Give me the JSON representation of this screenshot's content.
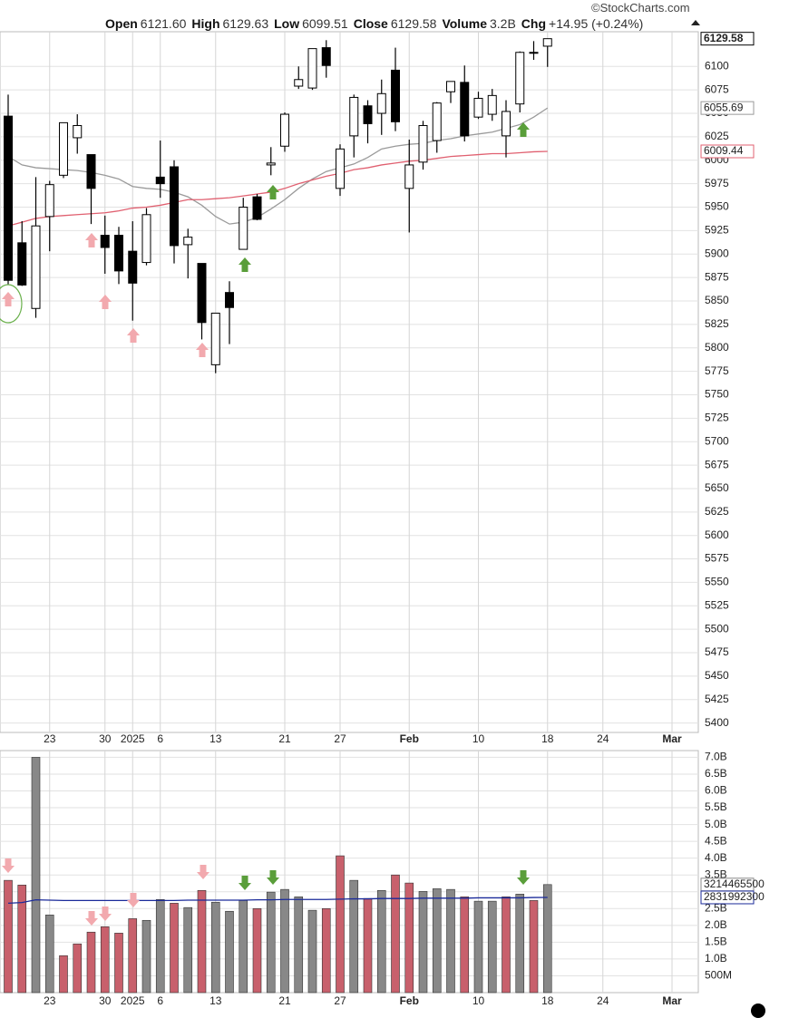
{
  "header": {
    "source": "©StockCharts.com",
    "items": [
      [
        "Open",
        "6121.60"
      ],
      [
        "High",
        "6129.63"
      ],
      [
        "Low",
        "6099.51"
      ],
      [
        "Close",
        "6129.58"
      ],
      [
        "Volume",
        "3.2B"
      ],
      [
        "Chg",
        "+14.95 (+0.24%)"
      ]
    ]
  },
  "chart_data": [
    {
      "type": "candlestick",
      "categories": [
        null,
        null,
        null,
        "23",
        null,
        null,
        null,
        "30",
        null,
        "2025",
        null,
        "6",
        null,
        null,
        null,
        "13",
        null,
        null,
        null,
        null,
        "21",
        null,
        null,
        null,
        "27",
        null,
        null,
        null,
        null,
        "Feb",
        null,
        null,
        null,
        null,
        "10",
        null,
        null,
        null,
        null,
        "18",
        null,
        null,
        null,
        "24",
        null,
        null,
        null,
        null,
        "Mar"
      ],
      "open": [
        6047,
        5912,
        5842,
        5940,
        5984,
        6024,
        6006,
        5920,
        5920,
        5903,
        5891,
        5982,
        5993,
        5910,
        5890,
        5782,
        5859,
        5905,
        5961,
        5995,
        6015,
        6079,
        6077,
        6120,
        5970,
        6026,
        6058,
        6050,
        6096,
        5970,
        5998,
        6021,
        6073,
        6083,
        6046,
        6049,
        6026,
        6060,
        6115,
        6121.6,
        null,
        null,
        null,
        null,
        null,
        null,
        null,
        null,
        null
      ],
      "high": [
        6070,
        5935,
        5982,
        5978,
        6040,
        6049,
        6006,
        5941,
        5929,
        5935,
        5949,
        6021,
        6000,
        5927,
        5890,
        5837,
        5871,
        5960,
        5964,
        6014,
        6051,
        6100,
        6119,
        6128,
        6017,
        6070,
        6064,
        6086,
        6120,
        6022,
        6042,
        6062,
        6084,
        6101,
        6073,
        6076,
        6064,
        6116,
        6127,
        6129.63,
        null,
        null,
        null,
        null,
        null,
        null,
        null,
        null,
        null
      ],
      "low": [
        5867,
        5866,
        5832,
        5903,
        5981,
        6007,
        5932,
        5879,
        5868,
        5829,
        5888,
        5960,
        5890,
        5874,
        5809,
        5773,
        5804,
        5905,
        5936,
        5984,
        6009,
        6076,
        6075,
        6088,
        5962,
        6003,
        6018,
        6027,
        6031,
        5923,
        5990,
        6008,
        6061,
        6020,
        6044,
        6042,
        6003,
        6051,
        6107,
        6099.51,
        null,
        null,
        null,
        null,
        null,
        null,
        null,
        null,
        null
      ],
      "close": [
        5872,
        5867,
        5930,
        5974,
        6040,
        6037,
        5970,
        5907,
        5882,
        5869,
        5942,
        5975,
        5909,
        5918,
        5827,
        5837,
        5843,
        5950,
        5937,
        5997,
        6049,
        6086,
        6119,
        6101,
        6012,
        6067,
        6039,
        6071,
        6041,
        5995,
        6037,
        6061,
        6084,
        6026,
        6066,
        6069,
        6052,
        6115,
        6115,
        6129.58,
        null,
        null,
        null,
        null,
        null,
        null,
        null,
        null,
        null
      ],
      "series": [
        {
          "color": "#9a9a9a",
          "values": [
            6004,
            5995,
            5992,
            5991,
            5990,
            5989,
            5987,
            5984,
            5980,
            5972,
            5970,
            5969,
            5966,
            5961,
            5952,
            5940,
            5932,
            5934,
            5939,
            5948,
            5958,
            5970,
            5980,
            5988,
            5992,
            5996,
            6003,
            6012,
            6015,
            6017,
            6018,
            6021,
            6023,
            6026,
            6028,
            6030,
            6034,
            6038,
            6046,
            6055.69,
            null,
            null,
            null,
            null,
            null,
            null,
            null,
            null,
            null
          ]
        },
        {
          "color": "#e06070",
          "values": [
            5930,
            5934,
            5938,
            5940,
            5941,
            5942,
            5943,
            5944,
            5946,
            5949,
            5950,
            5952,
            5955,
            5958,
            5958,
            5959,
            5960,
            5962,
            5964,
            5966,
            5970,
            5975,
            5979,
            5983,
            5986,
            5990,
            5992,
            5995,
            5997,
            5999,
            6000,
            6002,
            6004,
            6005,
            6006,
            6007,
            6007,
            6008,
            6009,
            6009.44,
            null,
            null,
            null,
            null,
            null,
            null,
            null,
            null,
            null
          ]
        }
      ],
      "ylim": [
        5390,
        6137
      ],
      "yticks": [
        5400,
        5425,
        5450,
        5475,
        5500,
        5525,
        5550,
        5575,
        5600,
        5625,
        5650,
        5675,
        5700,
        5725,
        5750,
        5775,
        5800,
        5825,
        5850,
        5875,
        5900,
        5925,
        5950,
        5975,
        6000,
        6025,
        6050,
        6075,
        6100
      ],
      "grid": true
    },
    {
      "type": "bar",
      "categories": [
        null,
        null,
        null,
        "23",
        null,
        null,
        null,
        "30",
        null,
        "2025",
        null,
        "6",
        null,
        null,
        null,
        "13",
        null,
        null,
        null,
        null,
        "21",
        null,
        null,
        null,
        "27",
        null,
        null,
        null,
        null,
        "Feb",
        null,
        null,
        null,
        null,
        "10",
        null,
        null,
        null,
        null,
        "18",
        null,
        null,
        null,
        "24",
        null,
        null,
        null,
        null,
        "Mar"
      ],
      "values": [
        3340000000,
        3200000000,
        7000000000,
        2310000000,
        1100000000,
        1450000000,
        1800000000,
        1960000000,
        1770000000,
        2200000000,
        2150000000,
        2770000000,
        2660000000,
        2530000000,
        3040000000,
        2690000000,
        2420000000,
        2740000000,
        2500000000,
        2990000000,
        3070000000,
        2850000000,
        2450000000,
        2500000000,
        4070000000,
        3340000000,
        2800000000,
        3040000000,
        3500000000,
        3260000000,
        3010000000,
        3090000000,
        3070000000,
        2850000000,
        2720000000,
        2720000000,
        2850000000,
        2930000000,
        2740000000,
        3214465500,
        null,
        null,
        null,
        null,
        null,
        null,
        null,
        null,
        null
      ],
      "colors": [
        "#c8606c",
        "#c8606c",
        "#888888",
        "#888888",
        "#c8606c",
        "#c8606c",
        "#c8606c",
        "#c8606c",
        "#c8606c",
        "#c8606c",
        "#888888",
        "#888888",
        "#c8606c",
        "#888888",
        "#c8606c",
        "#888888",
        "#888888",
        "#888888",
        "#c8606c",
        "#888888",
        "#888888",
        "#888888",
        "#888888",
        "#c8606c",
        "#c8606c",
        "#888888",
        "#c8606c",
        "#888888",
        "#c8606c",
        "#c8606c",
        "#888888",
        "#888888",
        "#888888",
        "#c8606c",
        "#888888",
        "#888888",
        "#c8606c",
        "#888888",
        "#c8606c",
        "#888888",
        null,
        null,
        null,
        null,
        null,
        null,
        null,
        null,
        null
      ],
      "series": [
        {
          "color": "#1a2a9a",
          "values": [
            2660000000,
            2680000000,
            2760000000,
            2750000000,
            2740000000,
            2740000000,
            2740000000,
            2740000000,
            2740000000,
            2740000000,
            2740000000,
            2740000000,
            2740000000,
            2750000000,
            2750000000,
            2750000000,
            2750000000,
            2750000000,
            2760000000,
            2760000000,
            2770000000,
            2770000000,
            2770000000,
            2770000000,
            2780000000,
            2790000000,
            2790000000,
            2800000000,
            2800000000,
            2800000000,
            2810000000,
            2810000000,
            2810000000,
            2810000000,
            2820000000,
            2820000000,
            2820000000,
            2820000000,
            2830000000,
            2831992300,
            null,
            null,
            null,
            null,
            null,
            null,
            null,
            null,
            null
          ]
        }
      ],
      "ylim": [
        0,
        7200000000
      ],
      "yticks": [
        {
          "value": 500000000,
          "label": "500M"
        },
        {
          "value": 1000000000,
          "label": "1.0B"
        },
        {
          "value": 1500000000,
          "label": "1.5B"
        },
        {
          "value": 2000000000,
          "label": "2.0B"
        },
        {
          "value": 2500000000,
          "label": "2.5B"
        },
        {
          "value": 3000000000,
          "label": "3.0B"
        },
        {
          "value": 3500000000,
          "label": "3.5B"
        },
        {
          "value": 4000000000,
          "label": "4.0B"
        },
        {
          "value": 4500000000,
          "label": "4.5B"
        },
        {
          "value": 5000000000,
          "label": "5.0B"
        },
        {
          "value": 5500000000,
          "label": "5.5B"
        },
        {
          "value": 6000000000,
          "label": "6.0B"
        },
        {
          "value": 6500000000,
          "label": "6.5B"
        },
        {
          "value": 7000000000,
          "label": "7.0B"
        }
      ],
      "grid": true
    }
  ]
}
